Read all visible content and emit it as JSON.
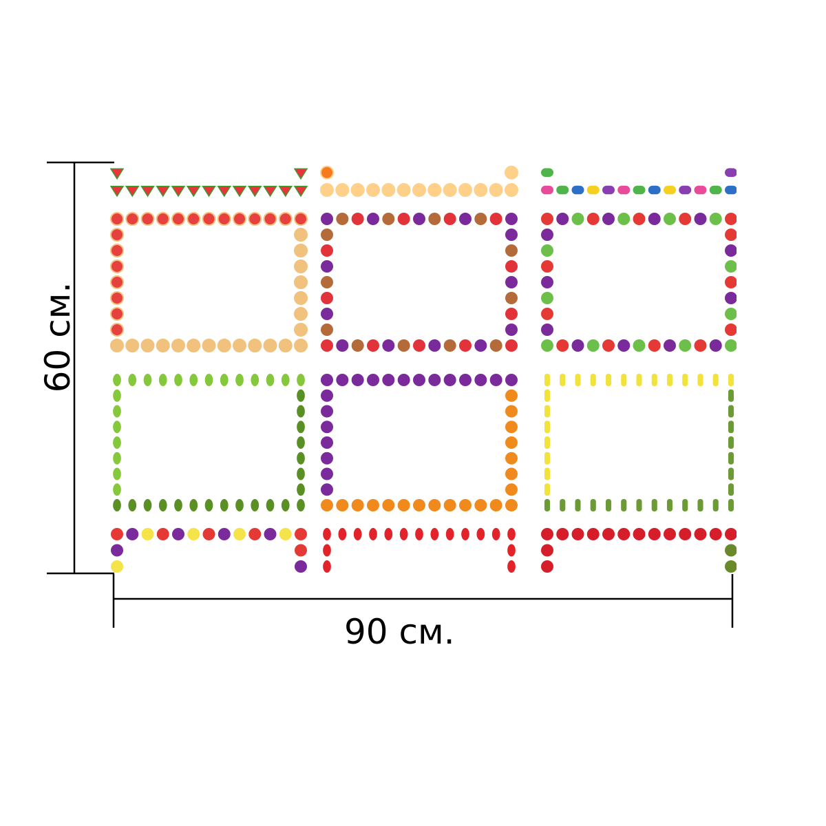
{
  "dimensions": {
    "width_label": "90 см.",
    "height_label": "60 см."
  },
  "colors": {
    "line": "#000000",
    "background": "#ffffff"
  },
  "pattern": {
    "rows": [
      [
        "watermelon-border",
        "orange-slice-border",
        "macaron-border"
      ],
      [
        "pizza-border",
        "mixed-vegetable-border",
        "tomato-artichoke-border"
      ],
      [
        "pear-border",
        "eggplant-carrot-border",
        "corn-border"
      ],
      [
        "berry-pineapple-border",
        "chili-pepper-border",
        "cherry-border"
      ]
    ],
    "motif_colors": {
      "watermelon-border": [
        "#e8343a",
        "#3a9a2e"
      ],
      "orange-slice-border": [
        "#f77b1e",
        "#ffd08a"
      ],
      "macaron-border": [
        "#2b6fc7",
        "#e94b9a",
        "#f5d020",
        "#4fb54b",
        "#8a3fb0"
      ],
      "pizza-border": [
        "#e7413f",
        "#f1c27d"
      ],
      "mixed-vegetable-border": [
        "#7a2a9a",
        "#e2333a",
        "#b56a3a"
      ],
      "tomato-artichoke-border": [
        "#e53935",
        "#6cc04a",
        "#7a2a9a"
      ],
      "pear-border": [
        "#86c83c",
        "#5a8f24"
      ],
      "eggplant-carrot-border": [
        "#7a2a9a",
        "#f08a1c"
      ],
      "corn-border": [
        "#f2e23c",
        "#6c9a34"
      ],
      "berry-pineapple-border": [
        "#e53935",
        "#f5e34a",
        "#7a2a9a"
      ],
      "chili-pepper-border": [
        "#e2242a"
      ],
      "cherry-border": [
        "#d61e2b",
        "#6a8a2a"
      ]
    }
  }
}
